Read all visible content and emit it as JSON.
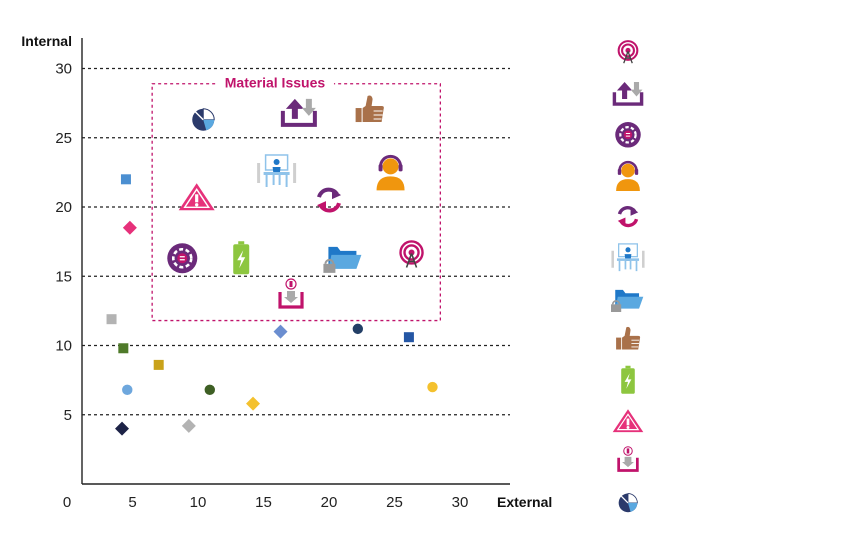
{
  "colors": {
    "magenta": "#c0136b",
    "purple": "#6b2a7a",
    "orange": "#f0960e",
    "brown": "#a9714a",
    "blue": "#1f78c8",
    "lightblue": "#5aa8e0",
    "green": "#8dc63f",
    "gray": "#b3b3b3",
    "gridline": "#222222"
  },
  "chart_data": {
    "type": "scatter",
    "xlabel": "External",
    "ylabel": "Internal",
    "xlim": [
      0,
      33
    ],
    "ylim": [
      0,
      32
    ],
    "x_ticks": [
      "0",
      "5",
      "10",
      "15",
      "20",
      "25",
      "30"
    ],
    "y_ticks": [
      "5",
      "10",
      "15",
      "20",
      "25",
      "30"
    ],
    "gridlines": "horizontal dashed",
    "region": {
      "label": "Material Issues",
      "x": [
        6.5,
        28.5
      ],
      "y": [
        11.8,
        28.9
      ]
    },
    "markers": [
      {
        "shape": "square",
        "x": 4.5,
        "y": 22.0,
        "color": "#4b8fd1"
      },
      {
        "shape": "diamond",
        "x": 4.8,
        "y": 18.5,
        "color": "#e6317a"
      },
      {
        "shape": "square",
        "x": 3.4,
        "y": 11.9,
        "color": "#b3b3b3"
      },
      {
        "shape": "square",
        "x": 4.3,
        "y": 9.8,
        "color": "#4f7a2a"
      },
      {
        "shape": "square",
        "x": 7.0,
        "y": 8.6,
        "color": "#c9a21a"
      },
      {
        "shape": "circle",
        "x": 4.6,
        "y": 6.8,
        "color": "#6ea7dd"
      },
      {
        "shape": "circle",
        "x": 10.9,
        "y": 6.8,
        "color": "#3e5f24"
      },
      {
        "shape": "diamond",
        "x": 4.2,
        "y": 4.0,
        "color": "#1d2347"
      },
      {
        "shape": "diamond",
        "x": 9.3,
        "y": 4.2,
        "color": "#b3b3b3"
      },
      {
        "shape": "diamond",
        "x": 14.2,
        "y": 5.8,
        "color": "#f4c12e"
      },
      {
        "shape": "diamond",
        "x": 16.3,
        "y": 11.0,
        "color": "#6b8ed0"
      },
      {
        "shape": "circle",
        "x": 22.2,
        "y": 11.2,
        "color": "#233f66"
      },
      {
        "shape": "square",
        "x": 26.1,
        "y": 10.6,
        "color": "#2456a4"
      },
      {
        "shape": "circle",
        "x": 27.9,
        "y": 7.0,
        "color": "#f4c12e"
      }
    ],
    "icon_points": [
      {
        "icon": "pie-chart-icon",
        "x": 10.4,
        "y": 26.3
      },
      {
        "icon": "share-upload-icon",
        "x": 17.7,
        "y": 26.8
      },
      {
        "icon": "thumbs-up-icon",
        "x": 23.1,
        "y": 27.0
      },
      {
        "icon": "meeting-icon",
        "x": 16.0,
        "y": 22.6
      },
      {
        "icon": "headset-person-icon",
        "x": 24.7,
        "y": 22.5
      },
      {
        "icon": "warning-icon",
        "x": 9.9,
        "y": 20.7
      },
      {
        "icon": "refresh-icon",
        "x": 20.0,
        "y": 20.5
      },
      {
        "icon": "gear-circle-icon",
        "x": 8.8,
        "y": 16.3
      },
      {
        "icon": "battery-icon",
        "x": 13.3,
        "y": 16.3
      },
      {
        "icon": "folder-lock-icon",
        "x": 21.1,
        "y": 16.4
      },
      {
        "icon": "signal-tower-icon",
        "x": 26.3,
        "y": 16.5
      },
      {
        "icon": "payment-tray-icon",
        "x": 17.1,
        "y": 13.5
      }
    ]
  },
  "legend": {
    "placement": "right",
    "icons": [
      "signal-tower-icon",
      "share-upload-icon",
      "gear-circle-icon",
      "headset-person-icon",
      "refresh-icon",
      "meeting-icon",
      "folder-lock-icon",
      "thumbs-up-icon",
      "battery-icon",
      "warning-icon",
      "payment-tray-icon",
      "pie-chart-icon"
    ]
  }
}
